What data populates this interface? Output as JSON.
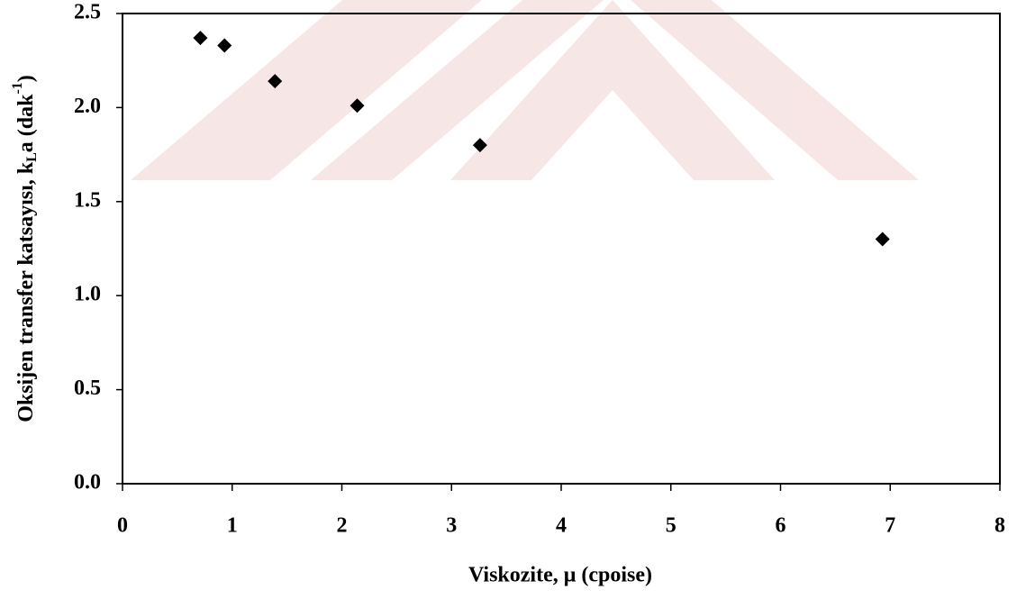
{
  "chart_data": {
    "type": "scatter",
    "xlabel": "Viskozite, μ (cpoise)",
    "ylabel": [
      "Oksijen transfer katsayısı, k",
      "L",
      "a (dak",
      "-1",
      ")"
    ],
    "x": [
      0.71,
      0.93,
      1.39,
      2.14,
      3.26,
      6.93
    ],
    "series": [
      {
        "color": "#000000",
        "values": [
          2.37,
          2.33,
          2.14,
          2.01,
          1.8,
          1.3
        ]
      }
    ],
    "xlim": [
      0,
      8
    ],
    "xticks": [
      0,
      1,
      2,
      3,
      4,
      5,
      6,
      7,
      8
    ],
    "ylim": [
      0,
      2.5
    ],
    "yticks": [
      {
        "value": 0,
        "label": "0.0"
      },
      0.5,
      {
        "value": 1,
        "label": "1.0"
      },
      1.5,
      {
        "value": 2,
        "label": "2.0"
      },
      2.5
    ]
  }
}
